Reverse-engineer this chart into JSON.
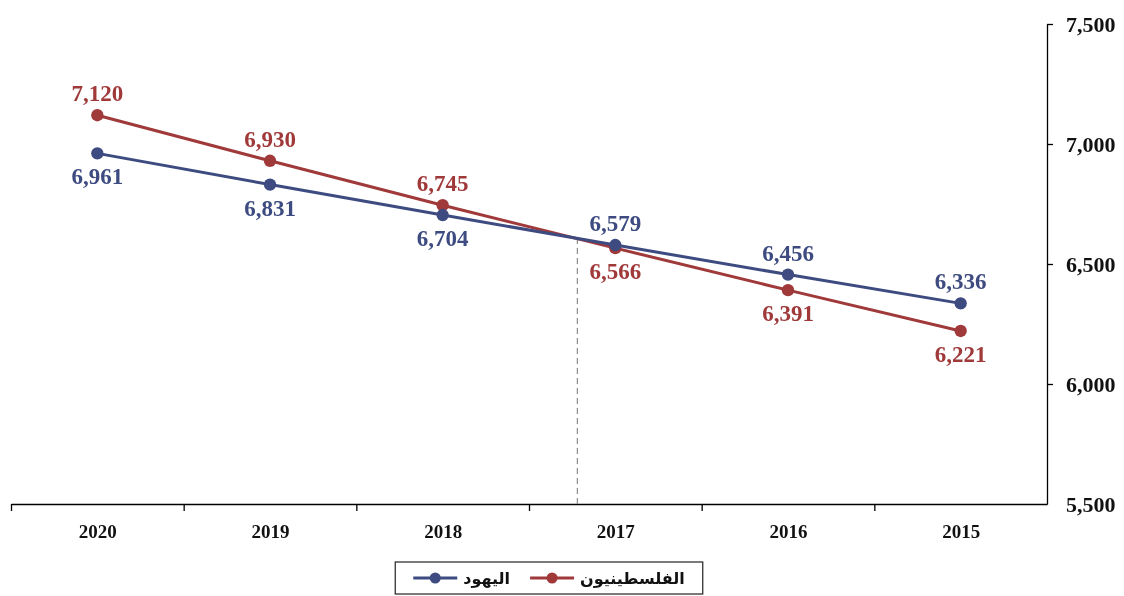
{
  "chart_data": {
    "type": "line",
    "x": [
      2020,
      2019,
      2018,
      2017,
      2016,
      2015
    ],
    "xlim": [
      2020.5,
      2014.5
    ],
    "xticks": [
      {
        "value": 2020.5,
        "label": null
      },
      2020,
      {
        "value": 2019.5,
        "label": null
      },
      2019,
      {
        "value": 2018.5,
        "label": null
      },
      2018,
      {
        "value": 2017.5,
        "label": null
      },
      2017,
      {
        "value": 2016.5,
        "label": null
      },
      2016,
      {
        "value": 2015.5,
        "label": null
      },
      2015
    ],
    "ylim": [
      5500,
      7500
    ],
    "yticks": [
      {
        "value": 5500,
        "label": "5,500"
      },
      {
        "value": 6000,
        "label": "6,000"
      },
      {
        "value": 6500,
        "label": "6,500"
      },
      {
        "value": 7000,
        "label": "7,000"
      },
      {
        "value": 7500,
        "label": "7,500"
      }
    ],
    "series": [
      {
        "name": "الفلسطينيون",
        "color": "#a0393a",
        "values": [
          7120,
          6930,
          6745,
          6566,
          6391,
          6221
        ],
        "value_labels": [
          "7,120",
          "6,930",
          "6,745",
          "6,566",
          "6,391",
          "6,221"
        ]
      },
      {
        "name": "اليهود",
        "color": "#3d4b80",
        "values": [
          6961,
          6831,
          6704,
          6579,
          6456,
          6336
        ],
        "value_labels": [
          "6,961",
          "6,831",
          "6,704",
          "6,579",
          "6,456",
          "6,336"
        ]
      }
    ],
    "ref_lines": [
      {
        "axis": "x",
        "value": 2017.22,
        "color": "#8c8c8c",
        "line_style": "dashed"
      }
    ],
    "marker": "circle",
    "line_style": "solid",
    "legend": "bottom"
  }
}
